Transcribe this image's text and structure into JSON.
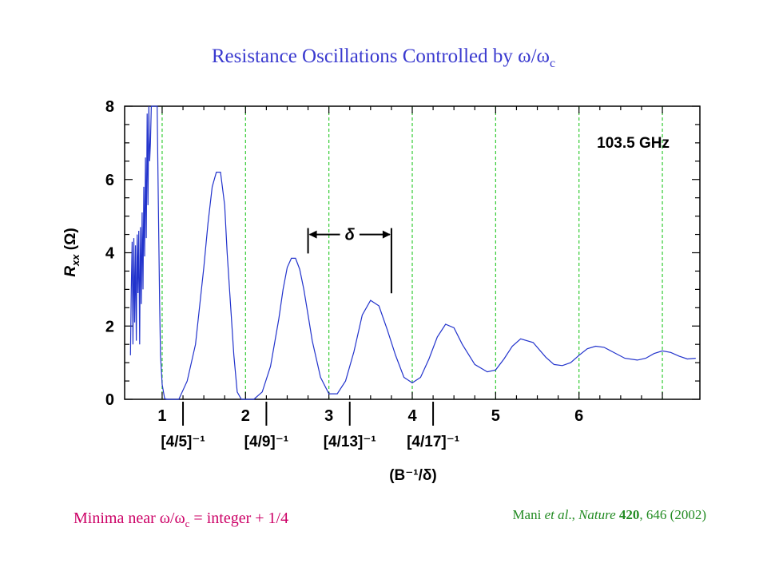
{
  "slide": {
    "title_prefix": "Resistance Oscillations Controlled by ",
    "title_omega": "ω/ω",
    "title_sub": "c",
    "title_color": "#3a3acf",
    "caption_left_prefix": "Minima near ",
    "caption_left_omega": "ω/ω",
    "caption_left_sub": "c",
    "caption_left_suffix": " = integer + 1/4",
    "caption_left_color": "#cc0066",
    "citation_author": "Mani ",
    "citation_etal": "et al",
    "citation_sep": "., ",
    "citation_journal": "Nature",
    "citation_space": " ",
    "citation_volume": "420",
    "citation_rest": ", 646 (2002)",
    "citation_color": "#228b22"
  },
  "chart_data": {
    "type": "line",
    "frequency_label": "103.5 GHz",
    "xlim": [
      0.55,
      7.45
    ],
    "ylim": [
      0,
      8
    ],
    "ylabel_main": "R",
    "ylabel_sub": "xx",
    "ylabel_unit": " (Ω)",
    "xlabel": "(B⁻¹/δ)",
    "delta_label": "δ",
    "y_ticks": [
      0,
      2,
      4,
      6,
      8
    ],
    "y_tick_labels": [
      "0",
      "2",
      "4",
      "6",
      "8"
    ],
    "x_ticks": [
      1,
      2,
      3,
      4,
      5,
      6
    ],
    "x_tick_labels": [
      "1",
      "2",
      "3",
      "4",
      "5",
      "6"
    ],
    "fraction_positions": [
      1.25,
      2.25,
      3.25,
      4.25
    ],
    "fraction_labels": [
      "[4/5]⁻¹",
      "[4/9]⁻¹",
      "[4/13]⁻¹",
      "[4/17]⁻¹"
    ],
    "grid_lines_x": [
      1,
      2,
      3,
      4,
      5,
      6,
      7
    ],
    "grid_color": "#33cc33",
    "series": [
      {
        "color": "#2233cc",
        "x": [
          0.62,
          0.63,
          0.64,
          0.65,
          0.66,
          0.67,
          0.68,
          0.69,
          0.7,
          0.71,
          0.72,
          0.73,
          0.74,
          0.75,
          0.76,
          0.77,
          0.78,
          0.79,
          0.8,
          0.81,
          0.82,
          0.83,
          0.84,
          0.85,
          0.86,
          0.87,
          0.88,
          0.89,
          0.9,
          0.91,
          0.92,
          0.93,
          0.94,
          0.95,
          0.96,
          0.97,
          0.98,
          1.0,
          1.03,
          1.06,
          1.1,
          1.15,
          1.2,
          1.3,
          1.4,
          1.5,
          1.55,
          1.6,
          1.65,
          1.7,
          1.75,
          1.78,
          1.82,
          1.86,
          1.9,
          1.95,
          2.0,
          2.05,
          2.1,
          2.2,
          2.3,
          2.4,
          2.45,
          2.5,
          2.55,
          2.6,
          2.65,
          2.7,
          2.75,
          2.8,
          2.9,
          3.0,
          3.1,
          3.2,
          3.3,
          3.4,
          3.5,
          3.6,
          3.7,
          3.8,
          3.9,
          4.0,
          4.1,
          4.2,
          4.3,
          4.4,
          4.5,
          4.6,
          4.75,
          4.9,
          5.0,
          5.1,
          5.2,
          5.3,
          5.45,
          5.6,
          5.7,
          5.8,
          5.9,
          6.0,
          6.1,
          6.2,
          6.3,
          6.4,
          6.55,
          6.7,
          6.8,
          6.9,
          7.0,
          7.1,
          7.2,
          7.3,
          7.4
        ],
        "y": [
          1.2,
          3.0,
          4.3,
          1.5,
          4.4,
          2.1,
          4.2,
          1.6,
          4.5,
          2.9,
          4.6,
          1.5,
          4.7,
          2.6,
          5.1,
          3.0,
          5.8,
          3.9,
          6.6,
          4.4,
          7.8,
          5.3,
          8.0,
          6.5,
          7.0,
          8.0,
          8.0,
          8.0,
          8.0,
          8.0,
          8.0,
          8.0,
          8.0,
          6.2,
          4.3,
          2.6,
          1.2,
          0.4,
          0.02,
          0.0,
          0.0,
          0.0,
          0.0,
          0.5,
          1.5,
          3.6,
          4.8,
          5.8,
          6.2,
          6.2,
          5.3,
          4.0,
          2.6,
          1.2,
          0.2,
          0.0,
          0.0,
          0.0,
          0.0,
          0.2,
          0.9,
          2.2,
          3.0,
          3.6,
          3.85,
          3.85,
          3.55,
          3.0,
          2.3,
          1.6,
          0.6,
          0.15,
          0.15,
          0.5,
          1.3,
          2.3,
          2.7,
          2.55,
          1.9,
          1.2,
          0.6,
          0.45,
          0.6,
          1.1,
          1.7,
          2.05,
          1.95,
          1.5,
          0.95,
          0.75,
          0.8,
          1.1,
          1.45,
          1.65,
          1.55,
          1.15,
          0.95,
          0.92,
          1.0,
          1.2,
          1.38,
          1.45,
          1.42,
          1.3,
          1.12,
          1.07,
          1.12,
          1.25,
          1.32,
          1.28,
          1.18,
          1.1,
          1.12
        ]
      }
    ],
    "annotations": {
      "delta_start_x": 2.75,
      "delta_end_x": 3.75,
      "delta_y": 4.5
    }
  }
}
